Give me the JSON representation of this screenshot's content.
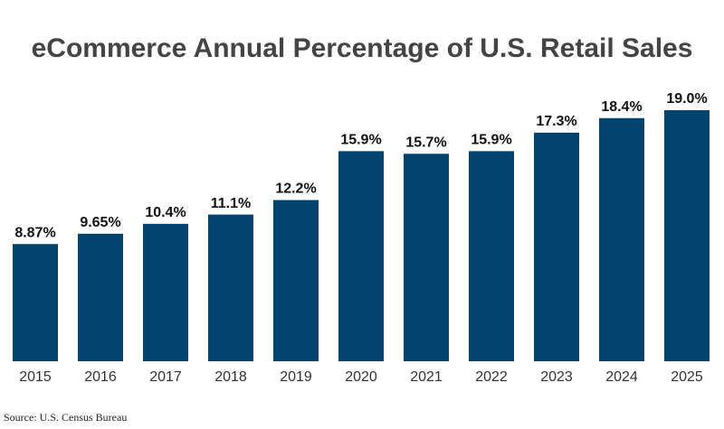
{
  "chart_data": {
    "type": "bar",
    "title": "eCommerce Annual Percentage of U.S. Retail Sales",
    "categories": [
      "2015",
      "2016",
      "2017",
      "2018",
      "2019",
      "2020",
      "2021",
      "2022",
      "2023",
      "2024",
      "2025"
    ],
    "values": [
      8.87,
      9.65,
      10.4,
      11.1,
      12.2,
      15.9,
      15.7,
      15.9,
      17.3,
      18.4,
      19.0
    ],
    "value_labels": [
      "8.87%",
      "9.65%",
      "10.4%",
      "11.1%",
      "12.2%",
      "15.9%",
      "15.7%",
      "15.9%",
      "17.3%",
      "18.4%",
      "19.0%"
    ],
    "color": "#03446f",
    "source": "Source: U.S. Census Bureau"
  }
}
